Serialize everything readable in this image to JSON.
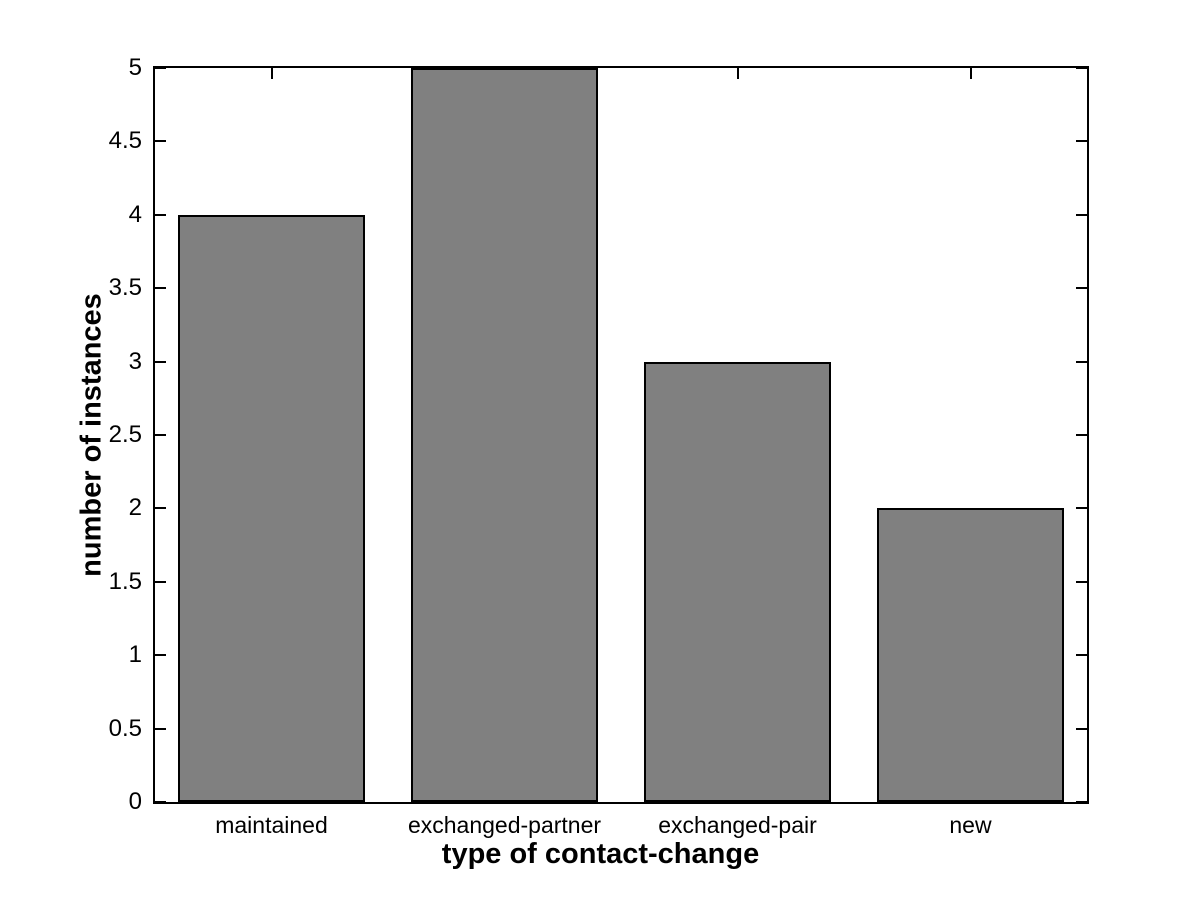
{
  "chart_data": {
    "type": "bar",
    "categories": [
      "maintained",
      "exchanged-partner",
      "exchanged-pair",
      "new"
    ],
    "values": [
      4,
      5,
      3,
      2
    ],
    "xlabel": "type of contact-change",
    "ylabel": "number of instances",
    "ylim": [
      0,
      5
    ],
    "ytick_step": 0.5,
    "yticks": [
      0,
      0.5,
      1,
      1.5,
      2,
      2.5,
      3,
      3.5,
      4,
      4.5,
      5
    ],
    "bar_width_fraction": 0.8,
    "bar_color": "#808080",
    "bar_edge_color": "#000000",
    "axis_color": "#000000",
    "background_color": "#ffffff",
    "grid": false,
    "legend_position": "none",
    "tick_direction": "in"
  }
}
